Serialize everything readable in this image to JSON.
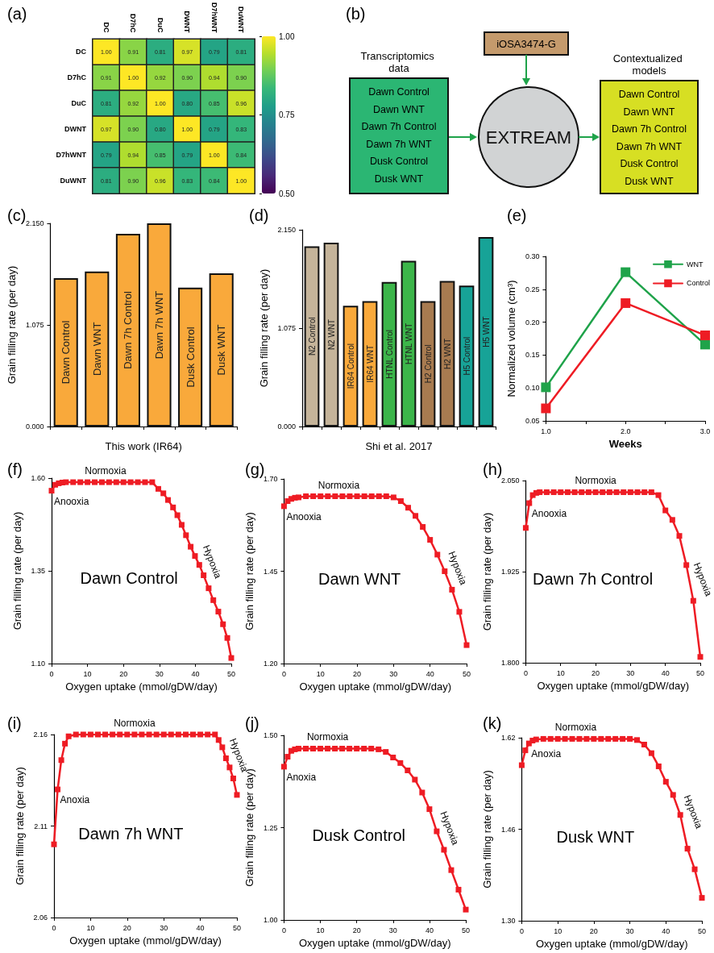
{
  "chart_data": [
    {
      "type": "heatmap",
      "title": "(a)",
      "categories": [
        "DC",
        "D7hC",
        "DuC",
        "DWNT",
        "D7hWNT",
        "DuWNT"
      ],
      "y_categories": [
        "DC",
        "D7hC",
        "DuC",
        "DWNT",
        "D7hWNT",
        "DuWNT"
      ],
      "cells": [
        [
          1.0,
          0.91,
          0.81,
          0.97,
          0.79,
          0.81
        ],
        [
          0.91,
          1.0,
          0.92,
          0.9,
          0.94,
          0.9
        ],
        [
          0.81,
          0.92,
          1.0,
          0.8,
          0.85,
          0.96
        ],
        [
          0.97,
          0.9,
          0.8,
          1.0,
          0.79,
          0.83
        ],
        [
          0.79,
          0.94,
          0.85,
          0.79,
          1.0,
          0.84
        ],
        [
          0.81,
          0.9,
          0.96,
          0.83,
          0.84,
          1.0
        ]
      ],
      "cell_labels": [
        [
          "1.00",
          "0.91",
          "0.81",
          "0.97",
          "0.79",
          "0.81"
        ],
        [
          "0.91",
          "1.00",
          "0.92",
          "0.90",
          "0.94",
          "0.90"
        ],
        [
          "0.81",
          "0.92",
          "1.00",
          "0.80",
          "0.85",
          "0.96"
        ],
        [
          "0.97",
          "0.90",
          "0.80",
          "1.00",
          "0.79",
          "0.83"
        ],
        [
          "0.79",
          "0.94",
          "0.85",
          "0.79",
          "1.00",
          "0.84"
        ],
        [
          "0.81",
          "0.90",
          "0.96",
          "0.83",
          "0.84",
          "1.00"
        ]
      ],
      "clim": [
        0.5,
        1.0
      ],
      "cticks": [
        {
          "value": 0.5,
          "label": "0.50"
        },
        {
          "value": 0.75,
          "label": "0.75"
        },
        {
          "value": 1.0,
          "label": "1.00"
        }
      ]
    },
    {
      "type": "other",
      "title": "(b)",
      "annotations": [
        "Transcriptomics data",
        "Dawn Control",
        "Dawn WNT",
        "Dawn 7h Control",
        "Dawn 7h WNT",
        "Dusk Control",
        "Dusk WNT",
        "iOSA3474-G",
        "EXTREAM",
        "Contextualized models",
        "Dawn Control",
        "Dawn WNT",
        "Dawn 7h Control",
        "Dawn 7h WNT",
        "Dusk Control",
        "Dusk WNT"
      ]
    },
    {
      "type": "bar",
      "title": "(c)",
      "xlabel": "This work (IR64)",
      "ylabel": "Grain filling rate (per day)",
      "categories": [
        "Dawn Control",
        "Dawn WNT",
        "Dawn 7h Control",
        "Dawn 7h WNT",
        "Dusk Control",
        "Dusk WNT"
      ],
      "values": [
        1.57,
        1.64,
        2.04,
        2.15,
        1.47,
        1.62
      ],
      "color": "#f9a93b",
      "ylim": [
        0,
        2.15
      ],
      "yticks": [
        {
          "value": 0,
          "label": "0.000"
        },
        {
          "value": 1.075,
          "label": "1.075"
        },
        {
          "value": 2.15,
          "label": "2.150"
        }
      ]
    },
    {
      "type": "bar",
      "title": "(d)",
      "xlabel": "Shi et al. 2017",
      "ylabel": "Grain filling rate (per day)",
      "categories": [
        "N2 Control",
        "N2 WNT",
        "IR64 Control",
        "IR64 WNT",
        "HTNL Control",
        "HTNL WNT",
        "H2 Control",
        "H2 WNT",
        "H5 Control",
        "H5 WNT"
      ],
      "values": [
        1.97,
        2.01,
        1.32,
        1.37,
        1.58,
        1.81,
        1.37,
        1.59,
        1.54,
        2.07
      ],
      "colors": [
        "#c5b49a",
        "#c5b49a",
        "#f9a93b",
        "#f9a93b",
        "#3cb54a",
        "#3cb54a",
        "#a87b50",
        "#a87b50",
        "#17a397",
        "#17a397"
      ],
      "ylim": [
        0,
        2.15
      ],
      "yticks": [
        {
          "value": 0,
          "label": "0.000"
        },
        {
          "value": 1.075,
          "label": "1.075"
        },
        {
          "value": 2.15,
          "label": "2.150"
        }
      ]
    },
    {
      "type": "line",
      "title": "(e)",
      "xlabel": "Weeks",
      "ylabel": "Normalized volume (cm³)",
      "x": [
        1,
        2,
        3
      ],
      "series": [
        {
          "name": "WNT",
          "color": "#1fa34a",
          "values": [
            0.101,
            0.276,
            0.166
          ]
        },
        {
          "name": "Control",
          "color": "#ee1c24",
          "values": [
            0.069,
            0.229,
            0.18
          ]
        }
      ],
      "xlim": [
        1,
        3
      ],
      "xticks": [
        {
          "value": 1,
          "label": "1.0"
        },
        {
          "value": 1.5,
          "label": null
        },
        {
          "value": 2,
          "label": "2.0"
        },
        {
          "value": 2.5,
          "label": null
        },
        {
          "value": 3,
          "label": "3.0"
        }
      ],
      "ylim": [
        0.05,
        0.3
      ],
      "yticks": [
        0.05,
        {
          "value": 0.1,
          "label": "0.10"
        },
        0.15,
        {
          "value": 0.2,
          "label": "0.20"
        },
        0.25,
        {
          "value": 0.3,
          "label": "0.30"
        }
      ],
      "legend": "top right",
      "marker": "square",
      "line_style": "solid"
    },
    {
      "type": "line",
      "title": "(f)",
      "xlabel": "Oxygen uptake (mmol/gDW/day)",
      "ylabel": "Grain filling rate (per day)",
      "color": "#ee1c24",
      "x": [
        0,
        1,
        2,
        3,
        4,
        6,
        8,
        10,
        12,
        14,
        16,
        18,
        20,
        22,
        24,
        26,
        28,
        29.7,
        31.1,
        32.4,
        33.8,
        35,
        36.2,
        37.4,
        38.7,
        39.9,
        41.1,
        42.3,
        43.7,
        45,
        46.4,
        47.7,
        48.9,
        50
      ],
      "values": [
        1.566,
        1.582,
        1.586,
        1.588,
        1.589,
        1.589,
        1.589,
        1.589,
        1.589,
        1.589,
        1.589,
        1.589,
        1.589,
        1.589,
        1.589,
        1.589,
        1.589,
        1.571,
        1.559,
        1.541,
        1.521,
        1.5,
        1.474,
        1.446,
        1.415,
        1.39,
        1.366,
        1.338,
        1.303,
        1.271,
        1.24,
        1.206,
        1.169,
        1.115
      ],
      "xlim": [
        0,
        50
      ],
      "xticks": [
        0,
        10,
        20,
        30,
        40,
        50
      ],
      "ylim": [
        1.1,
        1.6
      ],
      "yticks": [
        {
          "value": 1.1,
          "label": "1.10"
        },
        1.35,
        {
          "value": 1.6,
          "label": "1.60"
        }
      ],
      "marker": "square",
      "line_style": "solid",
      "annotations": [
        {
          "text": "Normoxia",
          "x": 15,
          "y": 1.589
        },
        {
          "text": "Anooxia",
          "x": 0,
          "y": 1.566
        },
        {
          "text": "Hypoxia",
          "x": 41.1,
          "y": 1.366
        },
        "Dawn Control"
      ]
    },
    {
      "type": "line",
      "title": "(g)",
      "xlabel": "Oxygen uptake (mmol/gDW/day)",
      "ylabel": "Grain filling rate (per day)",
      "color": "#ee1c24",
      "x": [
        0,
        1,
        2,
        3,
        4,
        6,
        8,
        10,
        12,
        14,
        16,
        18,
        20,
        22,
        24,
        26,
        28,
        30,
        32,
        34,
        36,
        38,
        40,
        42,
        44,
        46,
        48,
        50
      ],
      "values": [
        1.626,
        1.64,
        1.646,
        1.649,
        1.65,
        1.653,
        1.653,
        1.653,
        1.653,
        1.653,
        1.653,
        1.653,
        1.653,
        1.653,
        1.653,
        1.653,
        1.653,
        1.65,
        1.64,
        1.622,
        1.6,
        1.57,
        1.535,
        1.495,
        1.45,
        1.4,
        1.34,
        1.25
      ],
      "xlim": [
        0,
        50
      ],
      "xticks": [
        0,
        10,
        20,
        30,
        40,
        50
      ],
      "ylim": [
        1.2,
        1.7
      ],
      "yticks": [
        {
          "value": 1.2,
          "label": "1.20"
        },
        1.45,
        {
          "value": 1.7,
          "label": "1.70"
        }
      ],
      "marker": "square",
      "line_style": "solid",
      "annotations": [
        {
          "text": "Normoxia",
          "x": 15,
          "y": 1.653
        },
        {
          "text": "Anooxia",
          "x": 0,
          "y": 1.626
        },
        {
          "text": "Hypoxia",
          "x": 44,
          "y": 1.45
        },
        "Dawn WNT"
      ]
    },
    {
      "type": "line",
      "title": "(h)",
      "xlabel": "Oxygen uptake (mmol/gDW/day)",
      "ylabel": "Grain filling rate (per day)",
      "color": "#ee1c24",
      "x": [
        0,
        1,
        2,
        3,
        4,
        6,
        8,
        10,
        12,
        14,
        16,
        18,
        20,
        22,
        24,
        26,
        28,
        30,
        32,
        34,
        36,
        38,
        40,
        42,
        44,
        46,
        48,
        50
      ],
      "values": [
        1.985,
        2.019,
        2.03,
        2.033,
        2.034,
        2.034,
        2.034,
        2.034,
        2.034,
        2.034,
        2.034,
        2.034,
        2.034,
        2.034,
        2.034,
        2.034,
        2.034,
        2.034,
        2.034,
        2.034,
        2.034,
        2.03,
        2.009,
        1.996,
        1.974,
        1.934,
        1.885,
        1.808
      ],
      "xlim": [
        0,
        50
      ],
      "xticks": [
        0,
        10,
        20,
        30,
        40,
        50
      ],
      "ylim": [
        1.8,
        2.05
      ],
      "yticks": [
        {
          "value": 1.8,
          "label": "1.800"
        },
        1.925,
        {
          "value": 2.05,
          "label": "2.050"
        }
      ],
      "marker": "square",
      "line_style": "solid",
      "annotations": [
        {
          "text": "Normoxia",
          "x": 20,
          "y": 2.034
        },
        {
          "text": "Anooxia",
          "x": 1,
          "y": 2.019
        },
        {
          "text": "Hypoxia",
          "x": 47,
          "y": 1.91
        },
        "Dawn 7h Control"
      ]
    },
    {
      "type": "line",
      "title": "(i)",
      "xlabel": "Oxygen uptake (mmol/gDW/day)",
      "ylabel": "Grain filling rate (per day)",
      "color": "#ee1c24",
      "x": [
        0,
        1,
        2,
        3,
        4,
        6,
        8,
        10,
        12,
        14,
        16,
        18,
        20,
        22,
        24,
        26,
        28,
        30,
        32,
        34,
        36,
        38,
        40,
        42,
        44,
        45,
        46,
        47,
        48,
        49,
        50
      ],
      "values": [
        2.1,
        2.13,
        2.146,
        2.155,
        2.159,
        2.16,
        2.16,
        2.16,
        2.16,
        2.16,
        2.16,
        2.16,
        2.16,
        2.16,
        2.16,
        2.16,
        2.16,
        2.16,
        2.16,
        2.16,
        2.16,
        2.16,
        2.16,
        2.16,
        2.16,
        2.157,
        2.153,
        2.147,
        2.142,
        2.136,
        2.127
      ],
      "xlim": [
        0,
        50
      ],
      "xticks": [
        0,
        10,
        20,
        30,
        40,
        50
      ],
      "ylim": [
        2.06,
        2.16
      ],
      "yticks": [
        2.06,
        2.11,
        2.16
      ],
      "marker": "square",
      "line_style": "solid",
      "annotations": [
        {
          "text": "Normoxia",
          "x": 22,
          "y": 2.16
        },
        {
          "text": "Anoxia",
          "x": 1,
          "y": 2.13
        },
        {
          "text": "Hypoxia",
          "x": 47,
          "y": 2.147
        },
        "Dawn 7h WNT"
      ]
    },
    {
      "type": "line",
      "title": "(j)",
      "xlabel": "Oxygen uptake (mmol/gDW/day)",
      "ylabel": "Grain filling rate (per day)",
      "color": "#ee1c24",
      "x": [
        0,
        1,
        2,
        3,
        4,
        6,
        8,
        10,
        12,
        14,
        16,
        18,
        20,
        22,
        24,
        26,
        28,
        30,
        32,
        34,
        36,
        38,
        40,
        42,
        44,
        46,
        48,
        50
      ],
      "values": [
        1.415,
        1.442,
        1.458,
        1.462,
        1.464,
        1.464,
        1.464,
        1.464,
        1.464,
        1.464,
        1.464,
        1.464,
        1.464,
        1.464,
        1.464,
        1.462,
        1.455,
        1.44,
        1.425,
        1.405,
        1.38,
        1.345,
        1.3,
        1.24,
        1.19,
        1.135,
        1.082,
        1.028
      ],
      "xlim": [
        0,
        50
      ],
      "xticks": [
        0,
        10,
        20,
        30,
        40,
        50
      ],
      "ylim": [
        1.0,
        1.5
      ],
      "yticks": [
        {
          "value": 1.0,
          "label": "1.00"
        },
        1.25,
        {
          "value": 1.5,
          "label": "1.50"
        }
      ],
      "marker": "square",
      "line_style": "solid",
      "annotations": [
        {
          "text": "Normoxia",
          "x": 12,
          "y": 1.464
        },
        {
          "text": "Anoxia",
          "x": 0,
          "y": 1.415
        },
        {
          "text": "Hypoxia",
          "x": 42,
          "y": 1.24
        },
        "Dusk Control"
      ]
    },
    {
      "type": "line",
      "title": "(k)",
      "xlabel": "Oxygen uptake (mmol/gDW/day)",
      "ylabel": "Grain filling rate (per day)",
      "color": "#ee1c24",
      "x": [
        0,
        1,
        2,
        3,
        4,
        6,
        8,
        10,
        12,
        14,
        16,
        18,
        20,
        22,
        24,
        26,
        28,
        30,
        32,
        34,
        36,
        38,
        40,
        42,
        44,
        46,
        48,
        50
      ],
      "values": [
        1.572,
        1.598,
        1.61,
        1.615,
        1.617,
        1.618,
        1.618,
        1.618,
        1.618,
        1.618,
        1.618,
        1.618,
        1.618,
        1.618,
        1.618,
        1.618,
        1.618,
        1.618,
        1.616,
        1.608,
        1.593,
        1.57,
        1.543,
        1.52,
        1.485,
        1.426,
        1.39,
        1.34
      ],
      "xlim": [
        0,
        50
      ],
      "xticks": [
        0,
        10,
        20,
        30,
        40,
        50
      ],
      "ylim": [
        1.3,
        1.62
      ],
      "yticks": [
        {
          "value": 1.3,
          "label": "1.30"
        },
        1.46,
        1.62
      ],
      "marker": "square",
      "line_style": "solid",
      "annotations": [
        {
          "text": "Normoxia",
          "x": 15,
          "y": 1.618
        },
        {
          "text": "Anoxia",
          "x": 2,
          "y": 1.61
        },
        {
          "text": "Hypoxia",
          "x": 44,
          "y": 1.485
        },
        "Dusk WNT"
      ]
    }
  ]
}
